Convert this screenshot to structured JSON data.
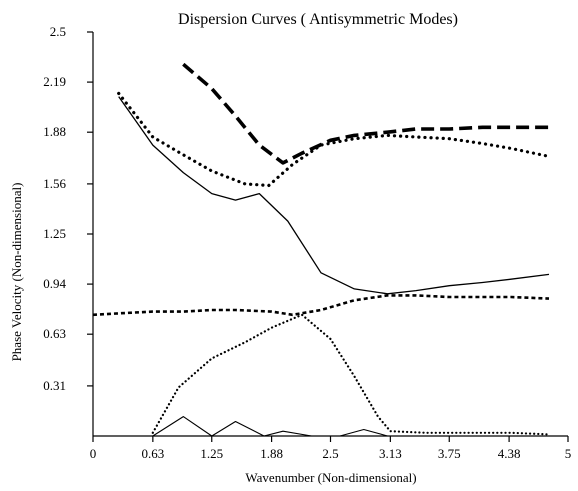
{
  "chart_data": {
    "type": "line",
    "title": "Dispersion Curves ( Antisymmetric Modes)",
    "xlabel": "Wavenumber (Non-dimensional)",
    "ylabel": "Phase Velocity (Non-dimensional)",
    "xlim": [
      0,
      5
    ],
    "ylim": [
      0,
      2.5
    ],
    "x_ticks": [
      "0",
      "0.63",
      "1.25",
      "1.88",
      "2.5",
      "3.13",
      "3.75",
      "4.38",
      "5"
    ],
    "x_tick_values": [
      0,
      0.63,
      1.25,
      1.88,
      2.5,
      3.13,
      3.75,
      4.38,
      5
    ],
    "y_ticks": [
      "0.31",
      "0.63",
      "0.94",
      "1.25",
      "1.56",
      "1.88",
      "2.19",
      "2.5"
    ],
    "y_tick_values": [
      0.31,
      0.63,
      0.94,
      1.25,
      1.56,
      1.88,
      2.19,
      2.5
    ],
    "grid": false,
    "legend": "none",
    "series": [
      {
        "style": "solid",
        "x": [
          0.27,
          0.63,
          0.95,
          1.25,
          1.5,
          1.75,
          2.05,
          2.4,
          2.75,
          3.1,
          3.4,
          3.75,
          4.1,
          4.4,
          4.8
        ],
        "y": [
          2.1,
          1.8,
          1.63,
          1.5,
          1.46,
          1.5,
          1.33,
          1.01,
          0.91,
          0.88,
          0.9,
          0.93,
          0.95,
          0.97,
          1.0
        ]
      },
      {
        "style": "dotted",
        "x": [
          0.27,
          0.63,
          0.95,
          1.25,
          1.6,
          1.85,
          2.1,
          2.4,
          2.75,
          3.1,
          3.4,
          3.75,
          4.1,
          4.4,
          4.8
        ],
        "y": [
          2.12,
          1.85,
          1.74,
          1.64,
          1.56,
          1.55,
          1.68,
          1.8,
          1.84,
          1.86,
          1.85,
          1.84,
          1.81,
          1.78,
          1.73
        ]
      },
      {
        "style": "long-dash",
        "x": [
          0.95,
          1.25,
          1.5,
          1.75,
          2.0,
          2.2,
          2.5,
          2.75,
          3.1,
          3.4,
          3.75,
          4.1,
          4.4,
          4.8
        ],
        "y": [
          2.3,
          2.15,
          1.98,
          1.8,
          1.69,
          1.75,
          1.83,
          1.86,
          1.88,
          1.9,
          1.9,
          1.91,
          1.91,
          1.91
        ]
      },
      {
        "style": "short-dash",
        "x": [
          0,
          0.3,
          0.63,
          0.95,
          1.25,
          1.5,
          1.88,
          2.1,
          2.4,
          2.75,
          3.1,
          3.4,
          3.75,
          4.1,
          4.4,
          4.8
        ],
        "y": [
          0.75,
          0.76,
          0.77,
          0.77,
          0.78,
          0.78,
          0.77,
          0.75,
          0.78,
          0.84,
          0.87,
          0.87,
          0.86,
          0.86,
          0.86,
          0.85
        ]
      },
      {
        "style": "fine-dot",
        "x": [
          0.63,
          0.9,
          1.25,
          1.6,
          1.88,
          2.2,
          2.5,
          2.75,
          3.0,
          3.13,
          3.5,
          3.9,
          4.4,
          4.8
        ],
        "y": [
          0.02,
          0.3,
          0.48,
          0.58,
          0.67,
          0.75,
          0.6,
          0.37,
          0.12,
          0.03,
          0.02,
          0.02,
          0.02,
          0.01
        ]
      },
      {
        "style": "thin-solid",
        "x": [
          0,
          0.3,
          0.63,
          0.95,
          1.25,
          1.5,
          1.8,
          2.0,
          2.3,
          2.6,
          2.85,
          3.1,
          3.4,
          3.75,
          4.1,
          4.4,
          4.8
        ],
        "y": [
          0,
          0,
          0,
          0.12,
          0.0,
          0.09,
          0.0,
          0.03,
          0.0,
          0.0,
          0.04,
          0.0,
          0.0,
          0.0,
          0.0,
          0.0,
          0.0
        ]
      }
    ]
  }
}
